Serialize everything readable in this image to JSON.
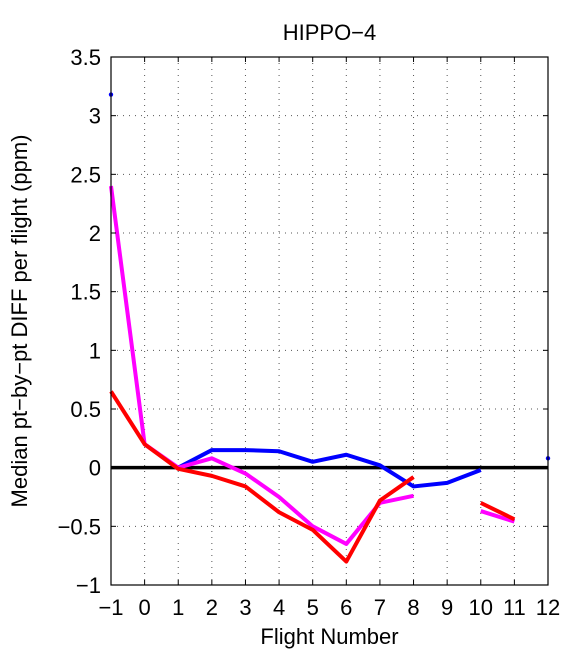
{
  "chart_data": {
    "type": "line",
    "title": "HIPPO−4",
    "xlabel": "Flight Number",
    "ylabel": "Median pt−by−pt DIFF per flight (ppm)",
    "xlim": [
      -1,
      12
    ],
    "ylim": [
      -1,
      3.5
    ],
    "xticks": [
      -1,
      0,
      1,
      2,
      3,
      4,
      5,
      6,
      7,
      8,
      9,
      10,
      11,
      12
    ],
    "xtick_labels": [
      "−1",
      "0",
      "1",
      "2",
      "3",
      "4",
      "5",
      "6",
      "7",
      "8",
      "9",
      "10",
      "11",
      "12"
    ],
    "yticks": [
      -1,
      -0.5,
      0,
      0.5,
      1,
      1.5,
      2,
      2.5,
      3,
      3.5
    ],
    "ytick_labels": [
      "−1",
      "−0.5",
      "0",
      "0.5",
      "1",
      "1.5",
      "2",
      "2.5",
      "3",
      "3.5"
    ],
    "grid": true,
    "reference_line": {
      "y": 0,
      "color": "#000000"
    },
    "series": [
      {
        "color": "#0000ff",
        "segments": [
          [
            [
              1,
              0.0
            ],
            [
              2,
              0.15
            ],
            [
              3,
              0.15
            ],
            [
              4,
              0.14
            ],
            [
              5,
              0.05
            ],
            [
              6,
              0.11
            ],
            [
              7,
              0.02
            ],
            [
              8,
              -0.16
            ],
            [
              9,
              -0.13
            ],
            [
              10,
              -0.02
            ]
          ]
        ],
        "points": [
          [
            -1,
            3.18
          ],
          [
            12,
            0.08
          ]
        ]
      },
      {
        "color": "#ff00ff",
        "segments": [
          [
            [
              -1,
              2.4
            ],
            [
              0,
              0.2
            ],
            [
              1,
              0.0
            ],
            [
              2,
              0.08
            ],
            [
              3,
              -0.05
            ],
            [
              4,
              -0.25
            ],
            [
              5,
              -0.5
            ],
            [
              6,
              -0.65
            ],
            [
              7,
              -0.3
            ],
            [
              8,
              -0.24
            ]
          ],
          [
            [
              10,
              -0.37
            ],
            [
              11,
              -0.46
            ]
          ]
        ],
        "points": []
      },
      {
        "color": "#ff0000",
        "segments": [
          [
            [
              -1,
              0.65
            ],
            [
              0,
              0.2
            ],
            [
              1,
              -0.01
            ],
            [
              2,
              -0.07
            ],
            [
              3,
              -0.16
            ],
            [
              4,
              -0.38
            ],
            [
              5,
              -0.53
            ],
            [
              6,
              -0.8
            ],
            [
              7,
              -0.28
            ],
            [
              8,
              -0.08
            ]
          ],
          [
            [
              10,
              -0.3
            ],
            [
              11,
              -0.44
            ]
          ]
        ],
        "points": []
      }
    ]
  }
}
